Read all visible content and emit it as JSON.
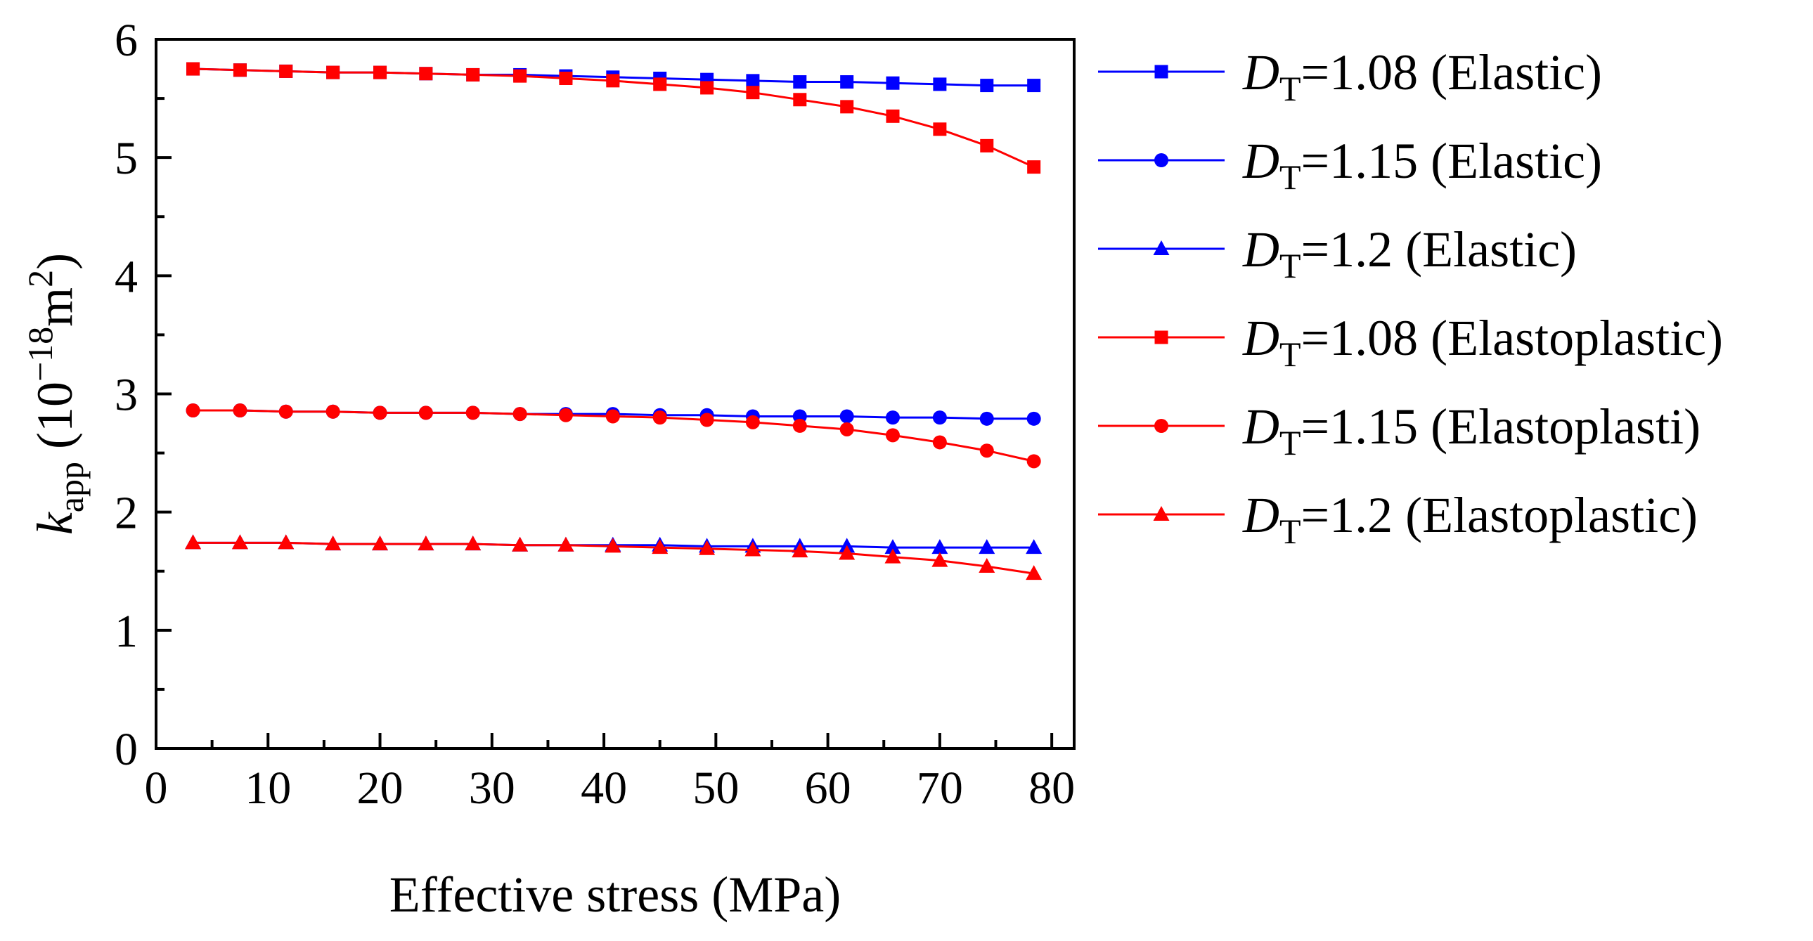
{
  "chart_data": {
    "type": "line",
    "xlabel": "Effective stress (MPa)",
    "ylabel": {
      "var": "k",
      "sub": "app",
      "pre": " (10",
      "exp": "−18",
      "unit": "m",
      "unit_exp": "2",
      "post": ")"
    },
    "xlim": [
      0,
      82
    ],
    "ylim": [
      0,
      6
    ],
    "xticks": [
      "0",
      "10",
      "20",
      "30",
      "40",
      "50",
      "60",
      "70",
      "80"
    ],
    "yticks": [
      "0",
      "1",
      "2",
      "3",
      "4",
      "5",
      "6"
    ],
    "grid": false,
    "legend_position": "right",
    "x": [
      3.3,
      7.5,
      11.6,
      15.8,
      20.0,
      24.1,
      28.3,
      32.5,
      36.6,
      40.8,
      45.0,
      49.2,
      53.3,
      57.5,
      61.7,
      65.8,
      70.0,
      74.2,
      78.4
    ],
    "series": [
      {
        "name": "DT=1.08 (Elastic)",
        "label": {
          "italic": "D",
          "sub": "T",
          "rest": "=1.08 (Elastic)"
        },
        "color": "#0000ff",
        "marker": "square",
        "values": [
          5.75,
          5.74,
          5.73,
          5.72,
          5.72,
          5.71,
          5.7,
          5.7,
          5.69,
          5.68,
          5.67,
          5.66,
          5.65,
          5.64,
          5.64,
          5.63,
          5.62,
          5.61,
          5.61
        ]
      },
      {
        "name": "DT=1.15 (Elastic)",
        "label": {
          "italic": "D",
          "sub": "T",
          "rest": "=1.15 (Elastic)"
        },
        "color": "#0000ff",
        "marker": "circle",
        "values": [
          2.86,
          2.86,
          2.85,
          2.85,
          2.84,
          2.84,
          2.84,
          2.83,
          2.83,
          2.83,
          2.82,
          2.82,
          2.81,
          2.81,
          2.81,
          2.8,
          2.8,
          2.79,
          2.79
        ]
      },
      {
        "name": "DT=1.2 (Elastic)",
        "label": {
          "italic": "D",
          "sub": "T",
          "rest": "=1.2 (Elastic)"
        },
        "color": "#0000ff",
        "marker": "triangle",
        "values": [
          1.74,
          1.74,
          1.74,
          1.73,
          1.73,
          1.73,
          1.73,
          1.72,
          1.72,
          1.72,
          1.72,
          1.71,
          1.71,
          1.71,
          1.71,
          1.7,
          1.7,
          1.7,
          1.7
        ]
      },
      {
        "name": "DT=1.08 (Elastoplastic)",
        "label": {
          "italic": "D",
          "sub": "T",
          "rest": "=1.08 (Elastoplastic)"
        },
        "color": "#ff0000",
        "marker": "square",
        "values": [
          5.75,
          5.74,
          5.73,
          5.72,
          5.72,
          5.71,
          5.7,
          5.69,
          5.67,
          5.65,
          5.62,
          5.59,
          5.55,
          5.49,
          5.43,
          5.35,
          5.24,
          5.1,
          4.92
        ]
      },
      {
        "name": "DT=1.15 (Elastoplasti)",
        "label": {
          "italic": "D",
          "sub": "T",
          "rest": "=1.15 (Elastoplasti)"
        },
        "color": "#ff0000",
        "marker": "circle",
        "values": [
          2.86,
          2.86,
          2.85,
          2.85,
          2.84,
          2.84,
          2.84,
          2.83,
          2.82,
          2.81,
          2.8,
          2.78,
          2.76,
          2.73,
          2.7,
          2.65,
          2.59,
          2.52,
          2.43
        ]
      },
      {
        "name": "DT=1.2 (Elastoplastic)",
        "label": {
          "italic": "D",
          "sub": "T",
          "rest": "=1.2 (Elastoplastic)"
        },
        "color": "#ff0000",
        "marker": "triangle",
        "values": [
          1.74,
          1.74,
          1.74,
          1.73,
          1.73,
          1.73,
          1.73,
          1.72,
          1.72,
          1.71,
          1.7,
          1.69,
          1.68,
          1.67,
          1.65,
          1.62,
          1.59,
          1.54,
          1.48
        ]
      }
    ]
  }
}
